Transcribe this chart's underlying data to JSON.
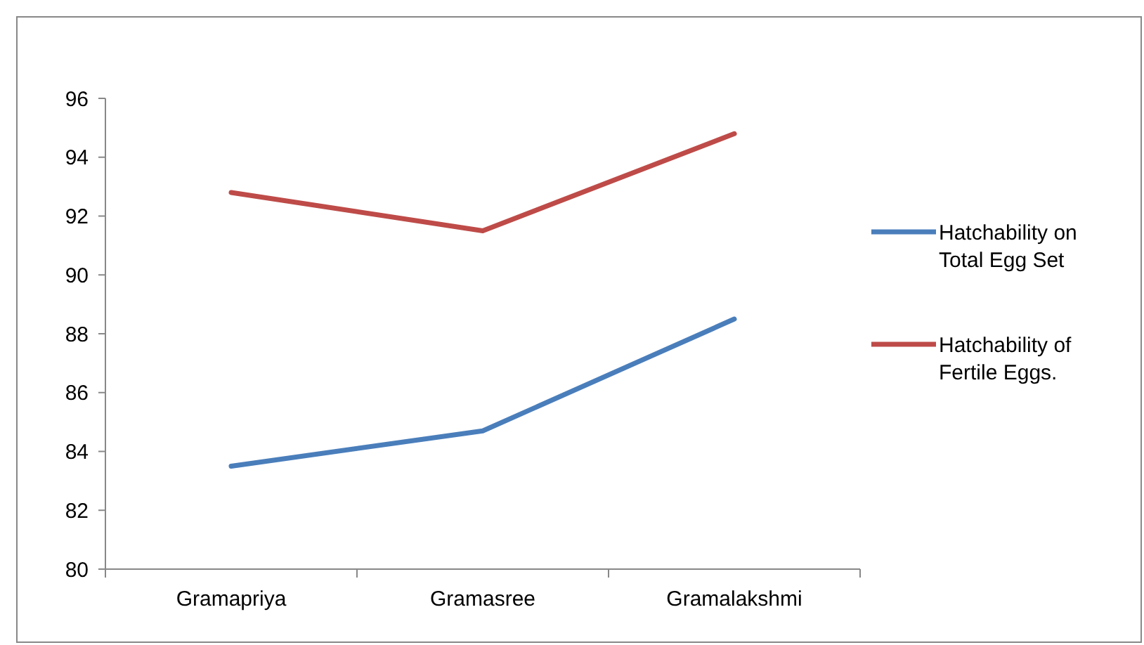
{
  "chart_data": {
    "type": "line",
    "categories": [
      "Gramapriya",
      "Gramasree",
      "Gramalakshmi"
    ],
    "series": [
      {
        "name": "Hatchability on Total Egg Set",
        "color": "#4a7ebb",
        "values": [
          83.5,
          84.7,
          88.5
        ]
      },
      {
        "name": "Hatchability of Fertile Eggs.",
        "color": "#be4b48",
        "values": [
          92.8,
          91.5,
          94.8
        ]
      }
    ],
    "ylim": [
      80,
      96
    ],
    "yticks": [
      80,
      82,
      84,
      86,
      88,
      90,
      92,
      94,
      96
    ],
    "legend": "right",
    "marker": "none",
    "line_style": "solid"
  }
}
